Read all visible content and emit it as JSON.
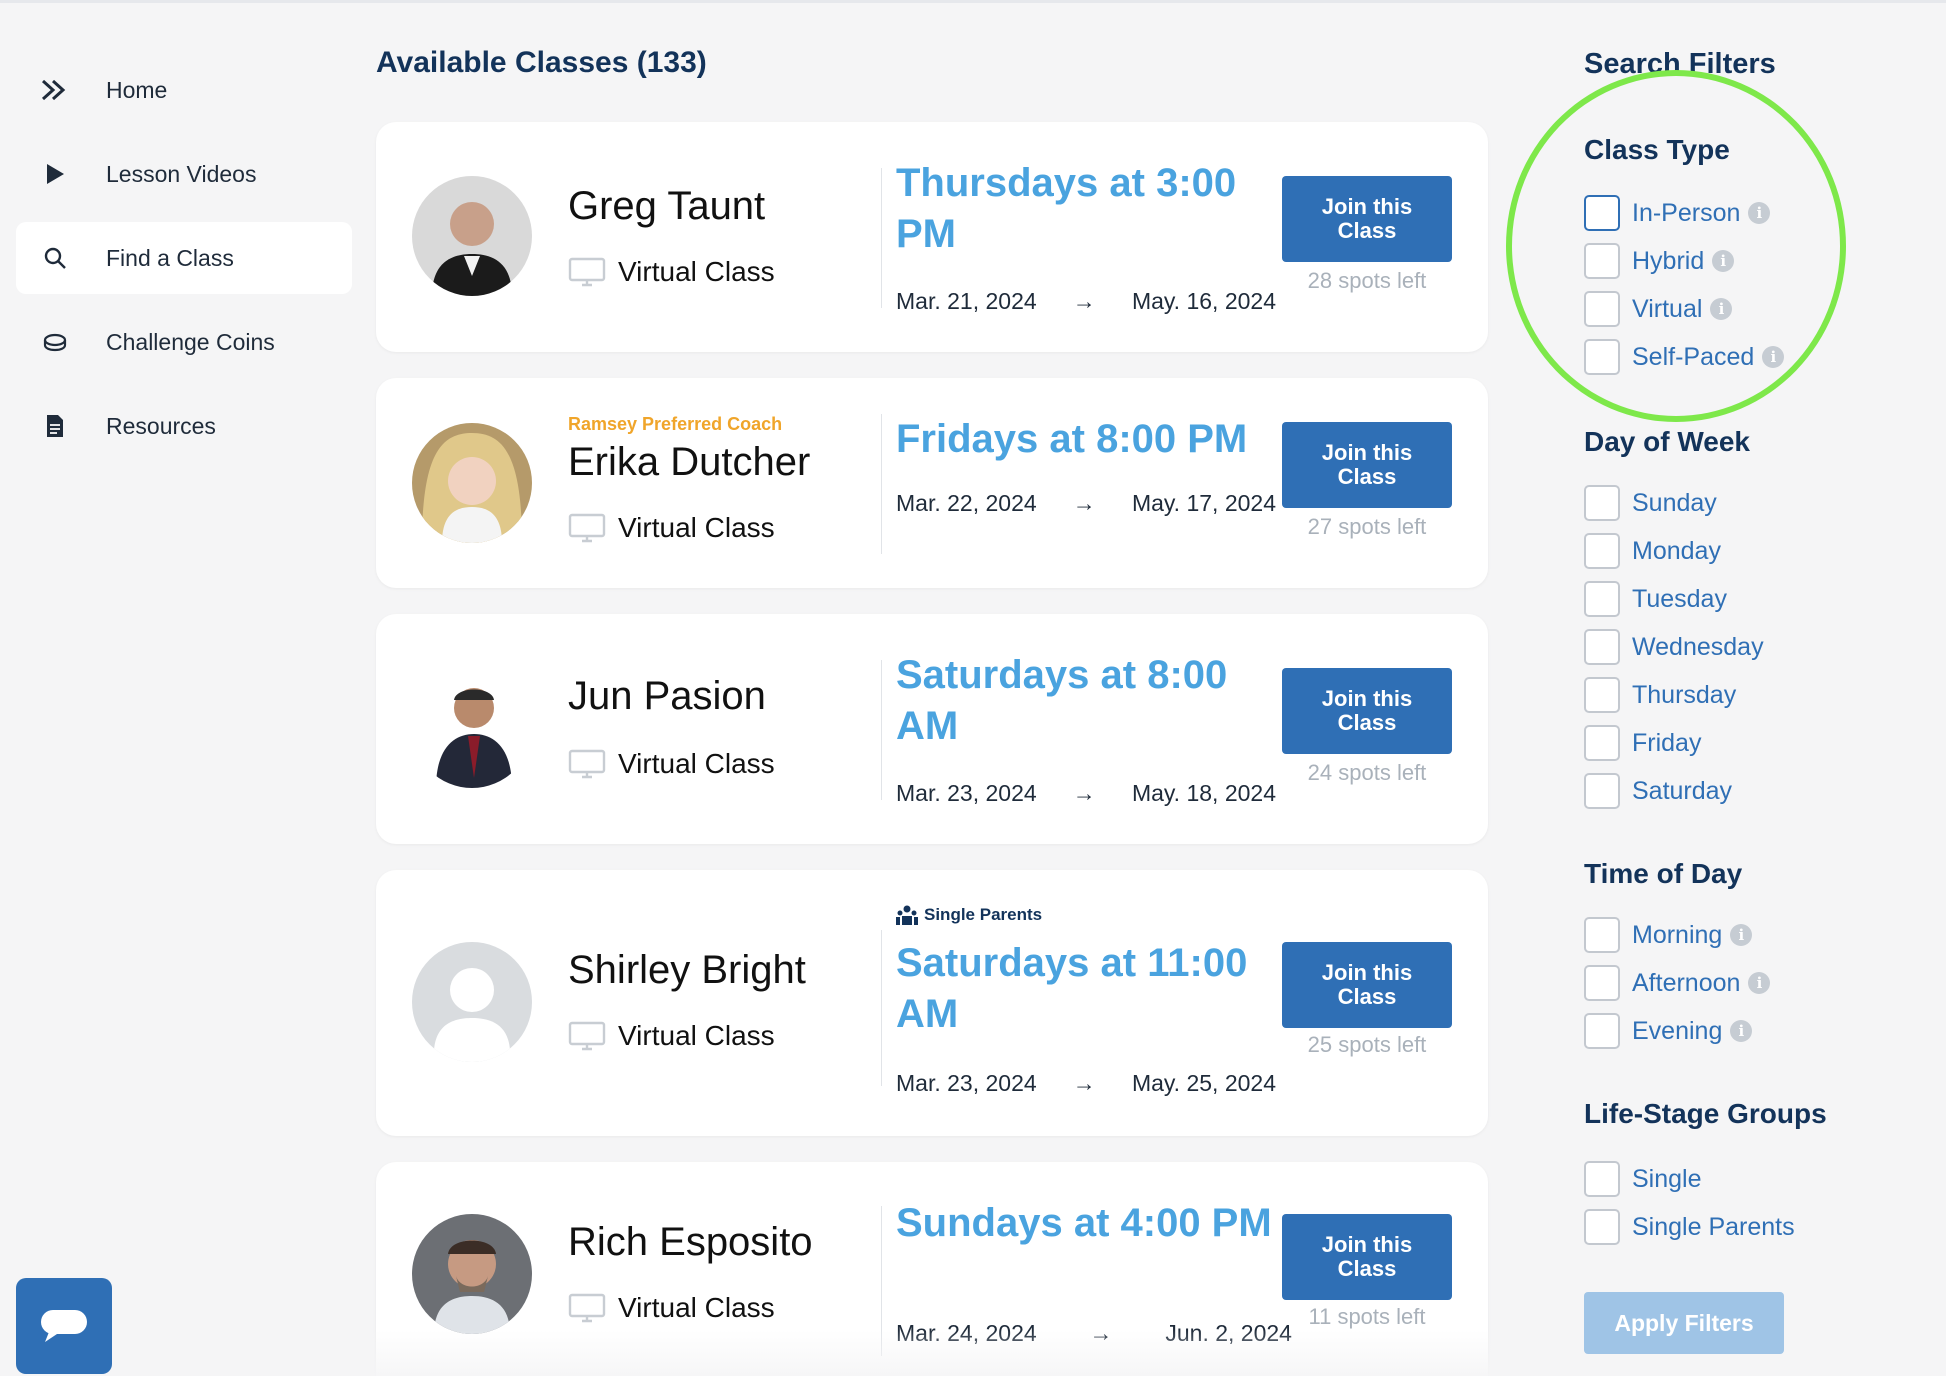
{
  "sidebar": {
    "items": [
      {
        "label": "Home",
        "icon": "home-chevrons-icon"
      },
      {
        "label": "Lesson Videos",
        "icon": "play-icon"
      },
      {
        "label": "Find a Class",
        "icon": "search-icon",
        "active": true
      },
      {
        "label": "Challenge Coins",
        "icon": "coins-icon"
      },
      {
        "label": "Resources",
        "icon": "document-icon"
      }
    ]
  },
  "main": {
    "title": "Available Classes (133)",
    "classes": [
      {
        "coach": "Greg Taunt",
        "badge": "",
        "type": "Virtual Class",
        "tag": "",
        "time": "Thursdays at 3:00 PM",
        "start": "Mar. 21, 2024",
        "end": "May. 16, 2024",
        "button": "Join this Class",
        "spots": "28 spots left"
      },
      {
        "coach": "Erika Dutcher",
        "badge": "Ramsey Preferred Coach",
        "type": "Virtual Class",
        "tag": "",
        "time": "Fridays at 8:00 PM",
        "start": "Mar. 22, 2024",
        "end": "May. 17, 2024",
        "button": "Join this Class",
        "spots": "27 spots left"
      },
      {
        "coach": "Jun Pasion",
        "badge": "",
        "type": "Virtual Class",
        "tag": "",
        "time": "Saturdays at 8:00 AM",
        "start": "Mar. 23, 2024",
        "end": "May. 18, 2024",
        "button": "Join this Class",
        "spots": "24 spots left"
      },
      {
        "coach": "Shirley Bright",
        "badge": "",
        "type": "Virtual Class",
        "tag": "Single Parents",
        "time": "Saturdays at 11:00 AM",
        "start": "Mar. 23, 2024",
        "end": "May. 25, 2024",
        "button": "Join this Class",
        "spots": "25 spots left"
      },
      {
        "coach": "Rich Esposito",
        "badge": "",
        "type": "Virtual Class",
        "tag": "",
        "time": "Sundays at 4:00 PM",
        "start": "Mar. 24, 2024",
        "end": "Jun. 2, 2024",
        "button": "Join this Class",
        "spots": "11 spots left"
      }
    ],
    "arrow": "→"
  },
  "filters": {
    "title": "Search Filters",
    "class_type": {
      "heading": "Class Type",
      "options": [
        "In-Person",
        "Hybrid",
        "Virtual",
        "Self-Paced"
      ]
    },
    "day_of_week": {
      "heading": "Day of Week",
      "options": [
        "Sunday",
        "Monday",
        "Tuesday",
        "Wednesday",
        "Thursday",
        "Friday",
        "Saturday"
      ]
    },
    "time_of_day": {
      "heading": "Time of Day",
      "options": [
        "Morning",
        "Afternoon",
        "Evening"
      ]
    },
    "life_stage": {
      "heading": "Life-Stage Groups",
      "options": [
        "Single",
        "Single Parents"
      ]
    },
    "info_glyph": "i",
    "apply_label": "Apply Filters"
  },
  "colors": {
    "accent": "#2f6fb5",
    "time": "#4aa3df",
    "heading": "#13335a",
    "badge": "#f0a52a",
    "highlight": "#7ee84a"
  }
}
